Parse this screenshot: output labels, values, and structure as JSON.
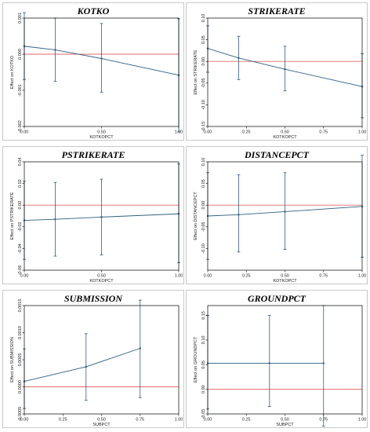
{
  "colors": {
    "series": "#2f5f80",
    "reference": "#e26b6b",
    "frame": "#000000"
  },
  "chart_data": [
    {
      "type": "line",
      "title": "KOTKO",
      "xlabel": "KOTKOPCT",
      "ylabel": "Effect on KOTKO",
      "x": [
        0,
        0.2,
        0.5,
        1
      ],
      "y": [
        0.00022,
        0.00012,
        -0.00012,
        -0.00058
      ],
      "lower": [
        -0.0007,
        -0.00075,
        -0.00105,
        -0.00215
      ],
      "upper": [
        0.00115,
        0.001,
        0.00085,
        0.00098
      ],
      "ref_y": 0,
      "xlim": [
        0,
        1
      ],
      "ylim": [
        -0.002,
        0.001
      ],
      "xticks": [
        0,
        0.5,
        1
      ],
      "xtick_labels": [
        "0.00",
        "0.50",
        "1.00"
      ],
      "yticks": [
        0.001,
        0,
        -0.001,
        -0.002
      ],
      "ytick_labels": [
        "0.001",
        "0.000",
        "-0.001",
        "-0.002"
      ]
    },
    {
      "type": "line",
      "title": "STRIKERATE",
      "xlabel": "KOTKOPCT",
      "ylabel": "Effect on STRIKERATE",
      "x": [
        0,
        0.2,
        0.5,
        1
      ],
      "y": [
        0.03,
        0.008,
        -0.018,
        -0.058
      ],
      "lower": [
        -0.025,
        -0.042,
        -0.068,
        -0.13
      ],
      "upper": [
        0.082,
        0.058,
        0.035,
        0.018
      ],
      "ref_y": 0,
      "xlim": [
        0,
        1
      ],
      "ylim": [
        -0.15,
        0.1
      ],
      "xticks": [
        0,
        0.25,
        0.5,
        0.75,
        1
      ],
      "xtick_labels": [
        "0.00",
        "0.25",
        "0.50",
        "0.75",
        "1.00"
      ],
      "yticks": [
        0.1,
        0.05,
        0,
        -0.05,
        -0.1,
        -0.15
      ],
      "ytick_labels": [
        "0.10",
        "0.05",
        "0.00",
        "-0.05",
        "-0.10",
        "-0.15"
      ]
    },
    {
      "type": "line",
      "title": "PSTRIKERATE",
      "xlabel": "KOTKOPCT",
      "ylabel": "Effect on PSTRIKERATE",
      "x": [
        0,
        0.2,
        0.5,
        1
      ],
      "y": [
        -0.014,
        -0.013,
        -0.011,
        -0.008
      ],
      "lower": [
        -0.05,
        -0.047,
        -0.046,
        -0.053
      ],
      "upper": [
        0.022,
        0.021,
        0.024,
        0.038
      ],
      "ref_y": 0,
      "xlim": [
        0,
        1
      ],
      "ylim": [
        -0.06,
        0.04
      ],
      "xticks": [
        0,
        0.5,
        1
      ],
      "xtick_labels": [
        "0.00",
        "0.50",
        "1.00"
      ],
      "yticks": [
        0.04,
        0.02,
        0,
        -0.02,
        -0.04,
        -0.06
      ],
      "ytick_labels": [
        "0.04",
        "0.02",
        "0.00",
        "-0.02",
        "-0.04",
        "-0.06"
      ]
    },
    {
      "type": "line",
      "title": "DISTANCEPCT",
      "xlabel": "KOTKOPCT",
      "ylabel": "Effect on DISTANCEPCT",
      "x": [
        0,
        0.2,
        0.5,
        1
      ],
      "y": [
        -0.025,
        -0.022,
        -0.015,
        -0.003
      ],
      "lower": [
        -0.125,
        -0.108,
        -0.102,
        -0.12
      ],
      "upper": [
        0.075,
        0.07,
        0.075,
        0.115
      ],
      "ref_y": 0,
      "xlim": [
        0,
        1
      ],
      "ylim": [
        -0.15,
        0.1
      ],
      "xticks": [
        0,
        0.25,
        0.5,
        0.75,
        1
      ],
      "xtick_labels": [
        "0.00",
        "0.25",
        "0.50",
        "0.75",
        "1.00"
      ],
      "yticks": [
        0.1,
        0.05,
        0,
        -0.05,
        -0.1
      ],
      "ytick_labels": [
        "0.10",
        "0.05",
        "0.00",
        "-0.05",
        "-0.10"
      ]
    },
    {
      "type": "line",
      "title": "SUBMISSION",
      "xlabel": "SUBPCT",
      "ylabel": "Effect on SUBMISSION",
      "x": [
        0,
        0.4,
        0.75
      ],
      "y": [
        0.0001,
        0.00037,
        0.00071
      ],
      "lower": [
        -0.0004,
        -0.00025,
        -0.0002
      ],
      "upper": [
        0.0007,
        0.00098,
        0.0016
      ],
      "ref_y": 0,
      "xlim": [
        0,
        1
      ],
      "ylim": [
        -0.0005,
        0.0015
      ],
      "xticks": [
        0,
        0.25,
        0.5,
        0.75,
        1
      ],
      "xtick_labels": [
        "0.00",
        "0.25",
        "0.50",
        "0.75",
        "1.00"
      ],
      "yticks": [
        0.0015,
        0.001,
        0.0005,
        0,
        -0.0005
      ],
      "ytick_labels": [
        "0.0015",
        "0.0010",
        "0.0005",
        "0.0000",
        "-0.0005"
      ]
    },
    {
      "type": "line",
      "title": "GROUNDPCT",
      "xlabel": "SUBPCT",
      "ylabel": "Effect on GROUNDPCT",
      "x": [
        0,
        0.4,
        0.75
      ],
      "y": [
        0.053,
        0.053,
        0.053
      ],
      "lower": [
        -0.04,
        -0.035,
        -0.075
      ],
      "upper": [
        0.15,
        0.15,
        0.17
      ],
      "ref_y": 0,
      "xlim": [
        0,
        1
      ],
      "ylim": [
        -0.05,
        0.17
      ],
      "xticks": [
        0,
        0.25,
        0.5,
        0.75,
        1
      ],
      "xtick_labels": [
        "0.00",
        "0.25",
        "0.50",
        "0.75",
        "1.00"
      ],
      "yticks": [
        0.15,
        0.1,
        0.05,
        0,
        -0.05
      ],
      "ytick_labels": [
        "0.15",
        "0.10",
        "0.05",
        "0.00",
        "-0.05"
      ]
    }
  ]
}
